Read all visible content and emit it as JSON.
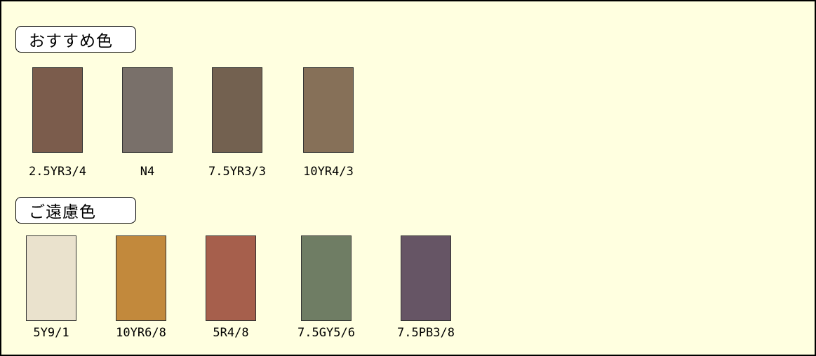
{
  "sections": {
    "recommended": {
      "title": "おすすめ色",
      "swatches": [
        {
          "label": "2.5YR3/4",
          "color": "#7b5c4c"
        },
        {
          "label": "N4",
          "color": "#79706a"
        },
        {
          "label": "7.5YR3/3",
          "color": "#736150"
        },
        {
          "label": "10YR4/3",
          "color": "#867058"
        }
      ]
    },
    "avoid": {
      "title": "ご遠慮色",
      "swatches": [
        {
          "label": "5Y9/1",
          "color": "#eae2cd"
        },
        {
          "label": "10YR6/8",
          "color": "#c2893c"
        },
        {
          "label": "5R4/8",
          "color": "#a65f4c"
        },
        {
          "label": "7.5GY5/6",
          "color": "#6f7d64"
        },
        {
          "label": "7.5PB3/8",
          "color": "#665565"
        }
      ]
    }
  }
}
